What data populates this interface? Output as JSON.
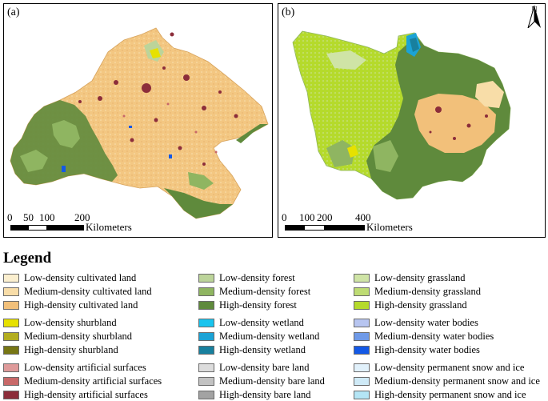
{
  "panel_a": {
    "label": "(a)",
    "scale_ticks": [
      "0",
      "50",
      "100",
      "200"
    ],
    "scale_unit": "Kilometers"
  },
  "panel_b": {
    "label": "(b)",
    "scale_ticks": [
      "0",
      "100",
      "200",
      "400"
    ],
    "scale_unit": "Kilometers",
    "north_arrow": {
      "letter": "N",
      "icon": "north-arrow-icon"
    }
  },
  "legend": {
    "title": "Legend",
    "groups": [
      {
        "name": "cultivated",
        "items": [
          {
            "label": "Low-density cultivated land",
            "color": "#fbefcf"
          },
          {
            "label": "Medium-density cultivated land",
            "color": "#f8dda8"
          },
          {
            "label": "High-density cultivated land",
            "color": "#f2c07a"
          }
        ]
      },
      {
        "name": "forest",
        "items": [
          {
            "label": "Low-density forest",
            "color": "#bcd49a"
          },
          {
            "label": "Medium-density forest",
            "color": "#8fb561"
          },
          {
            "label": "High-density forest",
            "color": "#5f8a3c"
          }
        ]
      },
      {
        "name": "grassland",
        "items": [
          {
            "label": "Low-density grassland",
            "color": "#cfe4a6"
          },
          {
            "label": "Medium-density grassland",
            "color": "#bedc74"
          },
          {
            "label": "High-density grassland",
            "color": "#b5da2c"
          }
        ]
      },
      {
        "name": "shurbland",
        "items": [
          {
            "label": "Low-density shurbland",
            "color": "#e6e100"
          },
          {
            "label": "Medium-density shurbland",
            "color": "#b3ad1f"
          },
          {
            "label": "High-density shurbland",
            "color": "#777614"
          }
        ]
      },
      {
        "name": "wetland",
        "items": [
          {
            "label": "Low-density wetland",
            "color": "#19c4ee"
          },
          {
            "label": "Medium-density wetland",
            "color": "#1ba3d6"
          },
          {
            "label": "High-density wetland",
            "color": "#18809e"
          }
        ]
      },
      {
        "name": "water",
        "items": [
          {
            "label": "Low-density water bodies",
            "color": "#b7c5f0"
          },
          {
            "label": "Medium-density water bodies",
            "color": "#6f9ae8"
          },
          {
            "label": "High-density water bodies",
            "color": "#1459e6"
          }
        ]
      },
      {
        "name": "artificial",
        "items": [
          {
            "label": "Low-density artificial surfaces",
            "color": "#de9a9a"
          },
          {
            "label": "Medium-density artificial surfaces",
            "color": "#c86868"
          },
          {
            "label": "High-density artificial surfaces",
            "color": "#8c2d3a"
          }
        ]
      },
      {
        "name": "bare",
        "items": [
          {
            "label": "Low-density bare land",
            "color": "#dcdcdc"
          },
          {
            "label": "Medium-density bare land",
            "color": "#c2c2c2"
          },
          {
            "label": "High-density bare land",
            "color": "#a3a3a3"
          }
        ]
      },
      {
        "name": "snow",
        "items": [
          {
            "label": "Low-density permanent snow and ice",
            "color": "#e1f1fb"
          },
          {
            "label": "Medium-density permanent snow and ice",
            "color": "#cfeaf7"
          },
          {
            "label": "High-density permanent snow and ice",
            "color": "#b4e5f5"
          }
        ]
      }
    ]
  }
}
